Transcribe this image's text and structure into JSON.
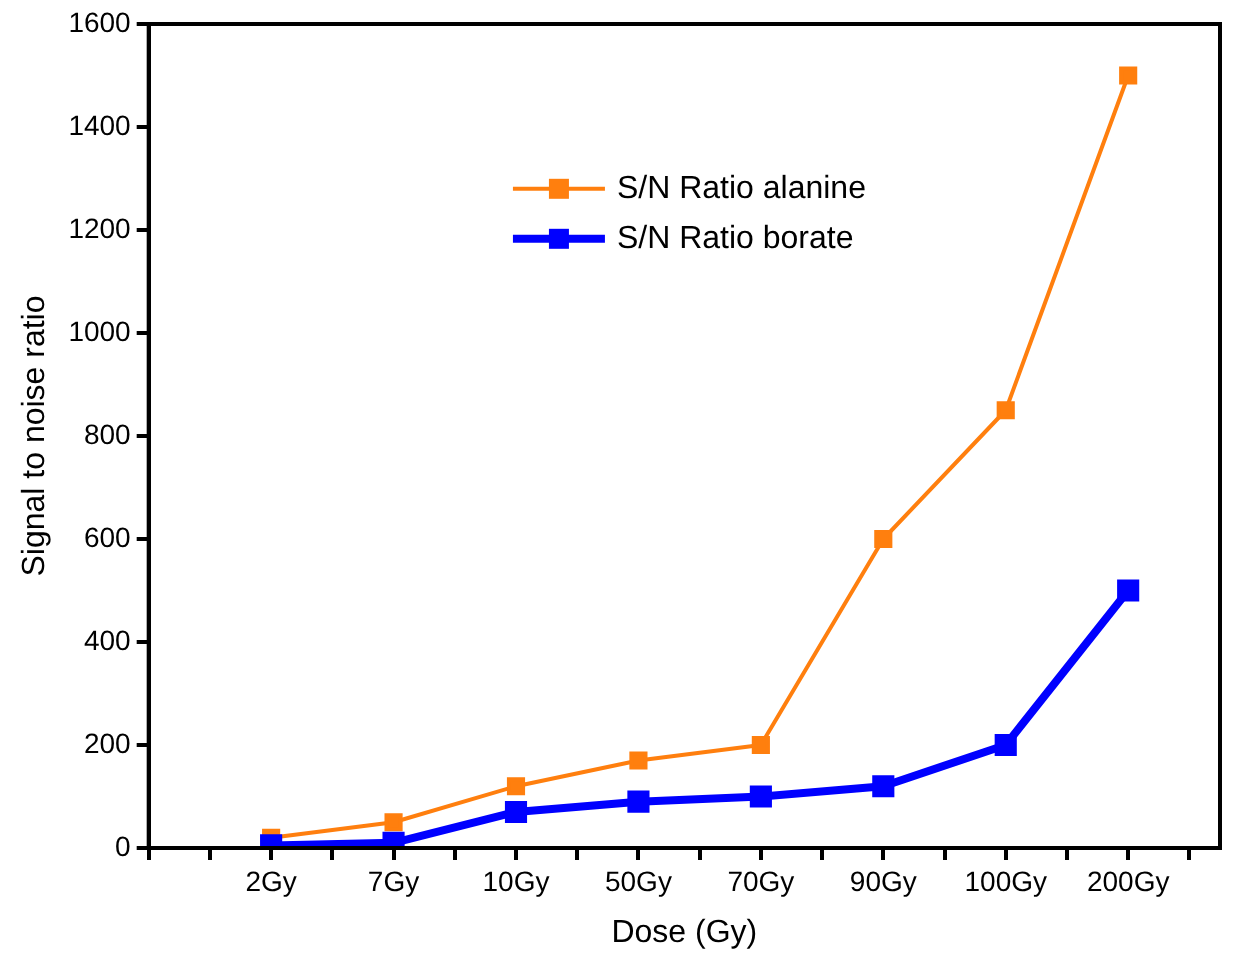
{
  "chart_data": {
    "type": "line",
    "xlabel": "Dose (Gy)",
    "ylabel": "Signal to noise ratio",
    "categories": [
      "2Gy",
      "7Gy",
      "10Gy",
      "50Gy",
      "70Gy",
      "90Gy",
      "100Gy",
      "200Gy"
    ],
    "ylim": [
      0,
      1600
    ],
    "yticks": [
      0,
      200,
      400,
      600,
      800,
      1000,
      1200,
      1400,
      1600
    ],
    "marker": "square",
    "legend": "top",
    "grid": false,
    "series": [
      {
        "name": "S/N Ratio alanine",
        "color": "#ff7f0e",
        "values": [
          20,
          50,
          120,
          170,
          200,
          600,
          850,
          1500
        ]
      },
      {
        "name": "S/N Ratio borate",
        "color": "#0000ff",
        "values": [
          5,
          10,
          70,
          90,
          100,
          120,
          200,
          500
        ]
      }
    ]
  }
}
